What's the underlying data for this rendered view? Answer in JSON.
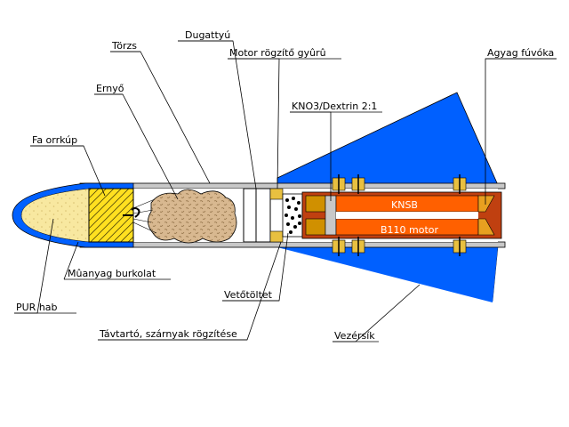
{
  "labels": {
    "torzs": "Törzs",
    "dugattyu": "Dugattyú",
    "motor_rogzito": "Motor rögzítő gyûrû",
    "agyag_fuvoka": "Agyag fúvóka",
    "erny": "Ernyő",
    "kno3": "KNO3/Dextrin 2:1",
    "fa_orrkup": "Fa orrkúp",
    "knsb": "KNSB",
    "b110": "B110 motor",
    "muanyag": "Mûanyag burkolat",
    "pur": "PUR hab",
    "vetotoltet": "Vetőtöltet",
    "tavtarto": "Távtartó, szárnyak rögzítése",
    "vezersik": "Vezérsík"
  },
  "colors": {
    "fin": "#0060ff",
    "body_fill": "#c8c8c8",
    "nose_foam": "#f8e8a0",
    "nose_shell": "#0060ff",
    "wood": "#ffe020",
    "parachute": "#d8b890",
    "motor_casing": "#c04010",
    "propellant": "#ff6000",
    "bulkhead": "#d09000",
    "nozzle": "#e8a020",
    "fastener": "#e8c040"
  }
}
